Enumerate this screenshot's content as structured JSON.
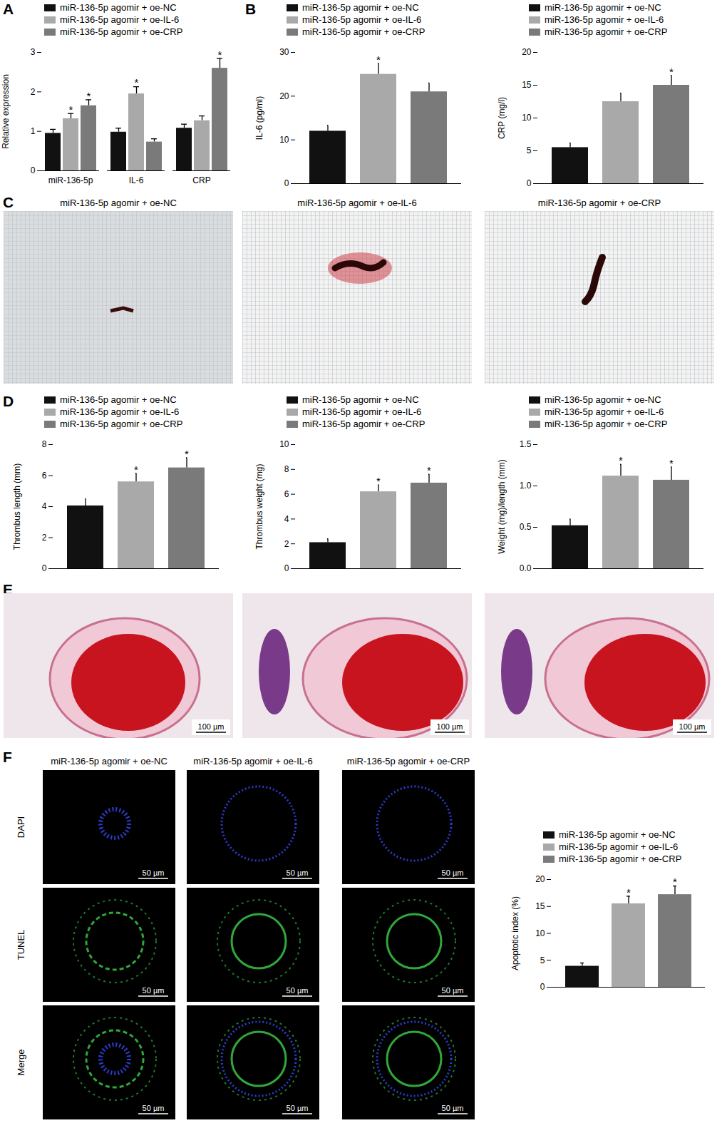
{
  "chart_data": [
    {
      "panel": "A",
      "type": "bar",
      "ylabel": "Relative expression",
      "categories": [
        "miR-136-5p",
        "IL-6",
        "CRP"
      ],
      "ylim": [
        0,
        3
      ],
      "yticks": [
        0,
        1,
        2,
        3
      ],
      "legend": "top",
      "series": [
        {
          "name": "miR-136-5p agomir + oe-NC",
          "color": "#111111",
          "values": [
            0.95,
            0.98,
            1.08
          ],
          "errors": [
            0.1,
            0.1,
            0.1
          ],
          "annotations": [
            null,
            null,
            null
          ]
        },
        {
          "name": "miR-136-5p agomir + oe-IL-6",
          "color": "#a9a9a9",
          "values": [
            1.32,
            1.95,
            1.27
          ],
          "errors": [
            0.13,
            0.18,
            0.12
          ],
          "annotations": [
            "*",
            "*",
            null
          ]
        },
        {
          "name": "miR-136-5p agomir + oe-CRP",
          "color": "#7a7a7a",
          "values": [
            1.65,
            0.73,
            2.6
          ],
          "errors": [
            0.15,
            0.08,
            0.25
          ],
          "annotations": [
            "*",
            null,
            "*"
          ]
        }
      ]
    },
    {
      "panel": "B",
      "type": "bar",
      "ylabel": "IL-6 (pg/ml)",
      "categories": [
        null
      ],
      "tick_labels": "y",
      "ylim": [
        0,
        30
      ],
      "yticks": [
        0,
        10,
        20,
        30
      ],
      "legend": "top",
      "series": [
        {
          "name": "miR-136-5p agomir + oe-NC",
          "color": "#111111",
          "values": [
            12
          ],
          "errors": [
            1.3
          ],
          "annotations": [
            null
          ]
        },
        {
          "name": "miR-136-5p agomir + oe-IL-6",
          "color": "#a9a9a9",
          "values": [
            25
          ],
          "errors": [
            2.5
          ],
          "annotations": [
            "*"
          ]
        },
        {
          "name": "miR-136-5p agomir + oe-CRP",
          "color": "#7a7a7a",
          "values": [
            21
          ],
          "errors": [
            2.0
          ],
          "annotations": [
            null
          ]
        }
      ]
    },
    {
      "type": "bar",
      "ylabel": "CRP (mg/l)",
      "categories": [
        null
      ],
      "tick_labels": "y",
      "ylim": [
        0,
        20
      ],
      "yticks": [
        0,
        5,
        10,
        15,
        20
      ],
      "legend": "top",
      "series": [
        {
          "name": "miR-136-5p agomir + oe-NC",
          "color": "#111111",
          "values": [
            5.5
          ],
          "errors": [
            0.7
          ],
          "annotations": [
            null
          ]
        },
        {
          "name": "miR-136-5p agomir + oe-IL-6",
          "color": "#a9a9a9",
          "values": [
            12.5
          ],
          "errors": [
            1.3
          ],
          "annotations": [
            null
          ]
        },
        {
          "name": "miR-136-5p agomir + oe-CRP",
          "color": "#7a7a7a",
          "values": [
            15
          ],
          "errors": [
            1.5
          ],
          "annotations": [
            "*"
          ]
        }
      ]
    },
    {
      "panel": "D",
      "type": "bar",
      "ylabel": "Thrombus length (mm)",
      "categories": [
        null
      ],
      "tick_labels": "y",
      "ylim": [
        0,
        8
      ],
      "yticks": [
        0,
        2,
        4,
        6,
        8
      ],
      "legend": "top",
      "series": [
        {
          "name": "miR-136-5p agomir + oe-NC",
          "color": "#111111",
          "values": [
            4.05
          ],
          "errors": [
            0.45
          ],
          "annotations": [
            null
          ]
        },
        {
          "name": "miR-136-5p agomir + oe-IL-6",
          "color": "#a9a9a9",
          "values": [
            5.6
          ],
          "errors": [
            0.55
          ],
          "annotations": [
            "*"
          ]
        },
        {
          "name": "miR-136-5p agomir + oe-CRP",
          "color": "#7a7a7a",
          "values": [
            6.5
          ],
          "errors": [
            0.65
          ],
          "annotations": [
            "*"
          ]
        }
      ]
    },
    {
      "type": "bar",
      "ylabel": "Thrombus weight (mg)",
      "categories": [
        null
      ],
      "tick_labels": "y",
      "ylim": [
        0,
        10
      ],
      "yticks": [
        0,
        2,
        4,
        6,
        8,
        10
      ],
      "legend": "top",
      "series": [
        {
          "name": "miR-136-5p agomir + oe-NC",
          "color": "#111111",
          "values": [
            2.1
          ],
          "errors": [
            0.3
          ],
          "annotations": [
            null
          ]
        },
        {
          "name": "miR-136-5p agomir + oe-IL-6",
          "color": "#a9a9a9",
          "values": [
            6.2
          ],
          "errors": [
            0.55
          ],
          "annotations": [
            "*"
          ]
        },
        {
          "name": "miR-136-5p agomir + oe-CRP",
          "color": "#7a7a7a",
          "values": [
            6.9
          ],
          "errors": [
            0.7
          ],
          "annotations": [
            "*"
          ]
        }
      ]
    },
    {
      "type": "bar",
      "ylabel": "Weight (mg)/length (mm)",
      "categories": [
        null
      ],
      "tick_labels": "y",
      "ylim": [
        0,
        1.5
      ],
      "yticks": [
        {
          "value": 0,
          "label": "0.0"
        },
        {
          "value": 0.5,
          "label": "0.5"
        },
        {
          "value": 1,
          "label": "1.0"
        },
        {
          "value": 1.5,
          "label": "1.5"
        }
      ],
      "legend": "top",
      "series": [
        {
          "name": "miR-136-5p agomir + oe-NC",
          "color": "#111111",
          "values": [
            0.52
          ],
          "errors": [
            0.08
          ],
          "annotations": [
            null
          ]
        },
        {
          "name": "miR-136-5p agomir + oe-IL-6",
          "color": "#a9a9a9",
          "values": [
            1.12
          ],
          "errors": [
            0.14
          ],
          "annotations": [
            "*"
          ]
        },
        {
          "name": "miR-136-5p agomir + oe-CRP",
          "color": "#7a7a7a",
          "values": [
            1.07
          ],
          "errors": [
            0.16
          ],
          "annotations": [
            "*"
          ]
        }
      ]
    },
    {
      "type": "bar",
      "ylabel": "Apoptotic index (%)",
      "categories": [
        null
      ],
      "tick_labels": "y",
      "ylim": [
        0,
        20
      ],
      "yticks": [
        0,
        5,
        10,
        15,
        20
      ],
      "legend": "top",
      "series": [
        {
          "name": "miR-136-5p agomir + oe-NC",
          "color": "#111111",
          "values": [
            3.9
          ],
          "errors": [
            0.6
          ],
          "annotations": [
            null
          ]
        },
        {
          "name": "miR-136-5p agomir + oe-IL-6",
          "color": "#a9a9a9",
          "values": [
            15.5
          ],
          "errors": [
            1.4
          ],
          "annotations": [
            "*"
          ]
        },
        {
          "name": "miR-136-5p agomir + oe-CRP",
          "color": "#7a7a7a",
          "values": [
            17.2
          ],
          "errors": [
            1.6
          ],
          "annotations": [
            "*"
          ]
        }
      ]
    }
  ],
  "image_panels": [
    {
      "panel": "C",
      "titles": [
        "miR-136-5p agomir + oe-NC",
        "miR-136-5p agomir + oe-IL-6",
        "miR-136-5p agomir + oe-CRP"
      ]
    },
    {
      "panel": "E",
      "scale_bars": [
        "100 µm",
        "100 µm",
        "100 µm"
      ]
    },
    {
      "panel": "F",
      "titles": [
        "miR-136-5p agomir + oe-NC",
        "miR-136-5p agomir + oe-IL-6",
        "miR-136-5p agomir + oe-CRP"
      ],
      "rows": [
        "DAPI",
        "TUNEL",
        "Merge"
      ],
      "scale_bar": "50 µm"
    }
  ]
}
